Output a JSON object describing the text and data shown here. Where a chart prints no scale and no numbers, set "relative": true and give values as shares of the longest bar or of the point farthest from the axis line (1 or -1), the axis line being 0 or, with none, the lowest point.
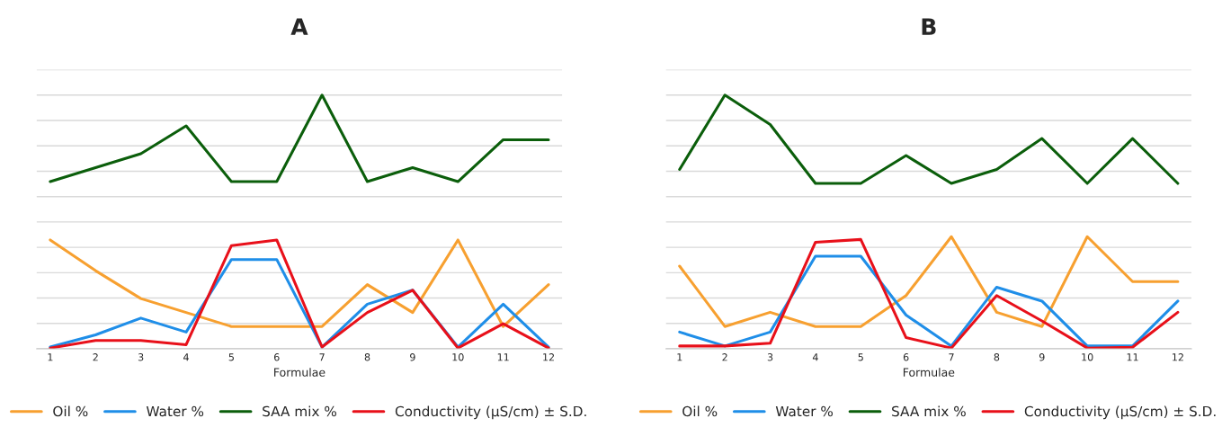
{
  "chart_data": [
    {
      "type": "line",
      "title": "A",
      "xlabel": "Formulae",
      "categories": [
        "1",
        "2",
        "3",
        "4",
        "5",
        "6",
        "7",
        "8",
        "9",
        "10",
        "11",
        "12"
      ],
      "relative": true,
      "grid": "y",
      "legend": "bottom",
      "line_style": "solid",
      "marker": "none",
      "series": [
        {
          "name": "Oil %",
          "color": "#f7a030",
          "values": [
            0.429,
            0.308,
            0.198,
            0.143,
            0.088,
            0.088,
            0.088,
            0.253,
            0.143,
            0.429,
            0.088,
            0.253
          ]
        },
        {
          "name": "Water %",
          "color": "#1f8ee8",
          "values": [
            0.007,
            0.055,
            0.121,
            0.066,
            0.352,
            0.352,
            0.007,
            0.176,
            0.231,
            0.007,
            0.176,
            0.007
          ]
        },
        {
          "name": "SAA mix %",
          "color": "#0b5e0b",
          "values": [
            0.659,
            0.714,
            0.769,
            0.879,
            0.659,
            0.659,
            1,
            0.659,
            0.714,
            0.659,
            0.824,
            0.824
          ]
        },
        {
          "name": "Conductivity (µS/cm) ± S.D.",
          "color": "#e8101a",
          "values": [
            0.003,
            0.033,
            0.033,
            0.016,
            0.407,
            0.429,
            0.007,
            0.143,
            0.231,
            0.003,
            0.099,
            0.003
          ]
        }
      ]
    },
    {
      "type": "line",
      "title": "B",
      "xlabel": "Formulae",
      "categories": [
        "1",
        "2",
        "3",
        "4",
        "5",
        "6",
        "7",
        "8",
        "9",
        "10",
        "11",
        "12"
      ],
      "relative": true,
      "grid": "y",
      "legend": "bottom",
      "line_style": "solid",
      "marker": "none",
      "series": [
        {
          "name": "Oil %",
          "color": "#f7a030",
          "values": [
            0.326,
            0.088,
            0.144,
            0.088,
            0.088,
            0.21,
            0.442,
            0.144,
            0.088,
            0.442,
            0.265,
            0.265
          ]
        },
        {
          "name": "Water %",
          "color": "#1f8ee8",
          "values": [
            0.066,
            0.011,
            0.066,
            0.365,
            0.365,
            0.133,
            0.011,
            0.243,
            0.188,
            0.011,
            0.011,
            0.188
          ]
        },
        {
          "name": "SAA mix %",
          "color": "#0b5e0b",
          "values": [
            0.707,
            1,
            0.884,
            0.652,
            0.652,
            0.762,
            0.652,
            0.707,
            0.829,
            0.652,
            0.829,
            0.652
          ]
        },
        {
          "name": "Conductivity (µS/cm) ± S.D.",
          "color": "#e8101a",
          "values": [
            0.011,
            0.011,
            0.022,
            0.42,
            0.431,
            0.044,
            0.003,
            0.21,
            0.11,
            0.003,
            0.006,
            0.144
          ]
        }
      ]
    }
  ]
}
